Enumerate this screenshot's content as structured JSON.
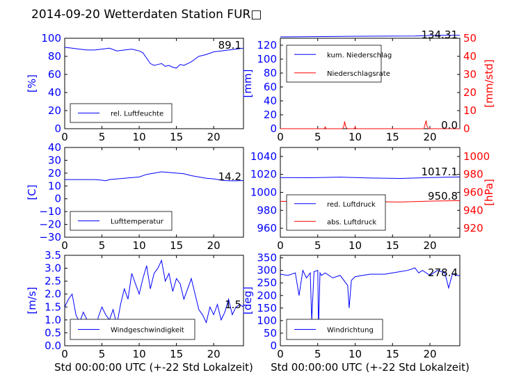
{
  "title": "2014-09-20 Wetterdaten Station FUR□",
  "xlabel": "Std 00:00:00 UTC (+-22 Std Lokalzeit)",
  "colors": {
    "blue": "#0000ff",
    "red": "#ff0000"
  },
  "chart_data": [
    {
      "type": "line",
      "id": "humidity",
      "xlim": [
        0,
        24
      ],
      "ylim": [
        0,
        100
      ],
      "xticks": [
        "0",
        "5",
        "10",
        "15",
        "20"
      ],
      "yticks": [
        "0",
        "20",
        "40",
        "60",
        "80",
        "100"
      ],
      "ylabel": "[%]",
      "legend": [
        {
          "label": "rel. Luftfeuchte",
          "color": "#0000ff"
        }
      ],
      "legend_position": "lower-left",
      "current_value": "89.1",
      "series": [
        {
          "name": "rel. Luftfeuchte",
          "color": "#0000ff",
          "axis": "left",
          "x": [
            0,
            1,
            2,
            3,
            4,
            5,
            6,
            7,
            8,
            9,
            10,
            10.5,
            11,
            11.5,
            12,
            12.5,
            13,
            13.5,
            14,
            14.5,
            15,
            15.5,
            16,
            16.5,
            17,
            17.5,
            18,
            19,
            20,
            21,
            22,
            23,
            24
          ],
          "y": [
            90,
            89,
            88,
            87,
            87,
            88,
            89,
            86,
            87,
            88,
            86,
            84,
            78,
            72,
            70,
            71,
            72,
            69,
            70,
            68,
            67,
            71,
            70,
            72,
            74,
            77,
            80,
            82,
            85,
            86,
            87,
            88,
            89
          ]
        }
      ]
    },
    {
      "type": "line",
      "id": "precipitation",
      "xlim": [
        0,
        24
      ],
      "ylim": [
        0,
        130
      ],
      "y2lim": [
        0,
        50
      ],
      "xticks": [
        "0",
        "5",
        "10",
        "15",
        "20"
      ],
      "yticks": [
        "0",
        "20",
        "40",
        "60",
        "80",
        "100",
        "120"
      ],
      "y2ticks": [
        "0",
        "10",
        "20",
        "30",
        "40",
        "50"
      ],
      "ylabel": "[mm]",
      "y2label": "[mm/std]",
      "legend": [
        {
          "label": "kum. Niederschlag",
          "color": "#0000ff"
        },
        {
          "label": "Niederschlagsrate",
          "color": "#ff0000"
        }
      ],
      "legend_position": "upper-left",
      "current_value": "134.31",
      "current_value2": "0.0",
      "series": [
        {
          "name": "kum. Niederschlag",
          "color": "#0000ff",
          "axis": "left",
          "x": [
            0,
            6,
            12,
            18,
            19.5,
            20,
            24
          ],
          "y": [
            132,
            132.5,
            133,
            133.3,
            133.8,
            134.3,
            134.31
          ]
        },
        {
          "name": "Niederschlagsrate",
          "color": "#ff0000",
          "axis": "right",
          "x": [
            0,
            5.9,
            6.0,
            6.1,
            8.3,
            8.5,
            8.6,
            8.7,
            8.8,
            9.0,
            9.9,
            10.0,
            10.1,
            19.2,
            19.4,
            19.5,
            19.6,
            19.8,
            24
          ],
          "y": [
            0,
            0,
            1,
            0,
            0,
            1.5,
            4,
            2,
            0.5,
            0,
            0,
            1,
            0,
            0,
            3,
            4.5,
            1.5,
            0,
            0
          ]
        }
      ]
    },
    {
      "type": "line",
      "id": "temperature",
      "xlim": [
        0,
        24
      ],
      "ylim": [
        -30,
        40
      ],
      "xticks": [
        "0",
        "5",
        "10",
        "15",
        "20"
      ],
      "yticks": [
        "−30",
        "−20",
        "−10",
        "0",
        "10",
        "20",
        "30",
        "40"
      ],
      "ylabel": "[C]",
      "legend": [
        {
          "label": "Lufttemperatur",
          "color": "#0000ff"
        }
      ],
      "legend_position": "lower-left",
      "current_value": "14.2",
      "series": [
        {
          "name": "Lufttemperatur",
          "color": "#0000ff",
          "axis": "left",
          "x": [
            0,
            2,
            4,
            5,
            5.5,
            6,
            8,
            10,
            11,
            12,
            13,
            14,
            15,
            16,
            17,
            18,
            19,
            20,
            21,
            22,
            23,
            24
          ],
          "y": [
            15,
            15,
            15,
            14.5,
            14,
            15,
            16,
            17,
            19,
            20,
            21,
            20.5,
            20,
            19.5,
            18,
            17,
            16,
            15.5,
            14.5,
            14,
            14,
            14.2
          ]
        }
      ]
    },
    {
      "type": "line",
      "id": "pressure",
      "xlim": [
        0,
        24
      ],
      "ylim": [
        950,
        1050
      ],
      "y2lim": [
        910,
        1010
      ],
      "xticks": [
        "0",
        "5",
        "10",
        "15",
        "20"
      ],
      "yticks": [
        "960",
        "980",
        "1000",
        "1020",
        "1040"
      ],
      "y2ticks": [
        "920",
        "940",
        "960",
        "980",
        "1000"
      ],
      "ylabel": "",
      "y2label": "[hPa]",
      "legend": [
        {
          "label": "red. Luftdruck",
          "color": "#0000ff"
        },
        {
          "label": "abs. Luftdruck",
          "color": "#ff0000"
        }
      ],
      "legend_position": "lower-left",
      "current_value": "1017.1",
      "current_value2": "950.8",
      "series": [
        {
          "name": "red. Luftdruck",
          "color": "#0000ff",
          "axis": "left",
          "x": [
            0,
            4,
            8,
            12,
            16,
            20,
            24
          ],
          "y": [
            1016.5,
            1016.3,
            1017,
            1016,
            1015.5,
            1016.5,
            1017.1
          ]
        },
        {
          "name": "abs. Luftdruck",
          "color": "#ff0000",
          "axis": "right",
          "x": [
            0,
            4,
            8,
            12,
            16,
            20,
            24
          ],
          "y": [
            950,
            949.8,
            950.5,
            949.6,
            949.2,
            950.2,
            950.8
          ]
        }
      ]
    },
    {
      "type": "line",
      "id": "windspeed",
      "xlim": [
        0,
        24
      ],
      "ylim": [
        0,
        3.5
      ],
      "xticks": [
        "0",
        "5",
        "10",
        "15",
        "20"
      ],
      "yticks": [
        "0.0",
        "0.5",
        "1.0",
        "1.5",
        "2.0",
        "2.5",
        "3.0",
        "3.5"
      ],
      "ylabel": "[m/s]",
      "legend": [
        {
          "label": "Windgeschwindigkeit",
          "color": "#0000ff"
        }
      ],
      "legend_position": "lower-left",
      "current_value": "1.5",
      "series": [
        {
          "name": "Windgeschwindigkeit",
          "color": "#0000ff",
          "axis": "left",
          "x": [
            0,
            0.5,
            1,
            1.5,
            2,
            2.5,
            3,
            3.5,
            4,
            4.5,
            5,
            5.5,
            6,
            6.5,
            7,
            7.5,
            8,
            8.5,
            9,
            9.5,
            10,
            10.5,
            11,
            11.5,
            12,
            12.5,
            13,
            13.5,
            14,
            14.5,
            15,
            15.5,
            16,
            16.5,
            17,
            17.5,
            18,
            18.5,
            19,
            19.5,
            20,
            20.5,
            21,
            21.5,
            22,
            22.5,
            23,
            23.5,
            24
          ],
          "y": [
            1.5,
            1.8,
            2.0,
            1.2,
            0.9,
            1.3,
            1.0,
            0.8,
            0.4,
            1.1,
            1.5,
            1.2,
            1.0,
            1.4,
            0.8,
            1.6,
            2.2,
            1.8,
            2.8,
            2.4,
            2.0,
            2.6,
            3.1,
            2.2,
            2.8,
            3.0,
            3.3,
            2.5,
            2.8,
            2.1,
            2.6,
            2.4,
            1.8,
            2.2,
            2.6,
            2.0,
            1.4,
            1.2,
            0.9,
            1.5,
            1.2,
            1.6,
            1.0,
            1.3,
            1.8,
            1.2,
            1.5,
            1.6,
            1.5
          ]
        }
      ]
    },
    {
      "type": "line",
      "id": "winddirection",
      "xlim": [
        0,
        24
      ],
      "ylim": [
        0,
        360
      ],
      "xticks": [
        "0",
        "5",
        "10",
        "15",
        "20"
      ],
      "yticks": [
        "0",
        "50",
        "100",
        "150",
        "200",
        "250",
        "300",
        "350"
      ],
      "ylabel": "[deg]",
      "legend": [
        {
          "label": "Windrichtung",
          "color": "#0000ff"
        }
      ],
      "legend_position": "lower-left",
      "current_value": "278.4",
      "series": [
        {
          "name": "Windrichtung",
          "color": "#0000ff",
          "axis": "left",
          "x": [
            0,
            1,
            2,
            2.5,
            3,
            3.5,
            4,
            4.2,
            4.5,
            5,
            5.1,
            5.3,
            5.5,
            6,
            7,
            8,
            9,
            9.2,
            9.5,
            10,
            11,
            12,
            13,
            14,
            15,
            16,
            17,
            18,
            18.5,
            19,
            20,
            21,
            22,
            22.5,
            23,
            24
          ],
          "y": [
            285,
            280,
            290,
            200,
            300,
            270,
            290,
            100,
            295,
            300,
            60,
            290,
            280,
            290,
            270,
            280,
            240,
            150,
            260,
            275,
            280,
            285,
            285,
            285,
            290,
            295,
            300,
            310,
            290,
            300,
            280,
            300,
            290,
            230,
            285,
            278
          ]
        }
      ]
    }
  ]
}
